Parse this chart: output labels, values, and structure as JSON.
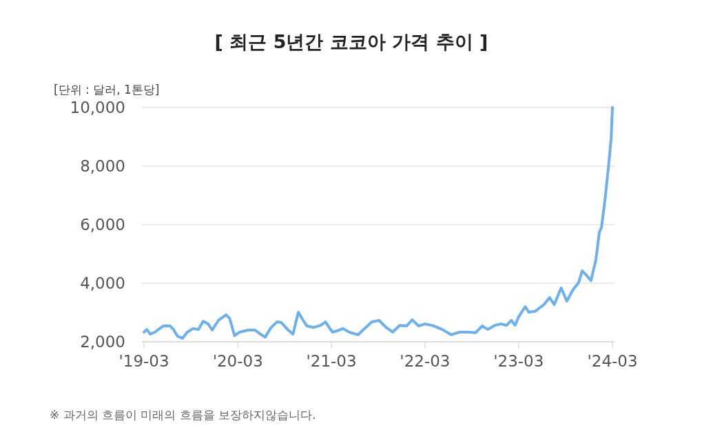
{
  "chart_data": {
    "type": "line",
    "title": "[ 최근 5년간 코코아 가격 추이 ]",
    "ylabel": "[단위 : 달러, 1톤당]",
    "annotations": [
      "※ 과거의 흐름이 미래의 흐름을 보장하지않습니다."
    ],
    "x": [
      "2019-03-01",
      "2019-03-12",
      "2019-03-25",
      "2019-04-13",
      "2019-04-26",
      "2019-05-15",
      "2019-06-11",
      "2019-06-24",
      "2019-07-10",
      "2019-07-29",
      "2019-08-17",
      "2019-09-08",
      "2019-09-29",
      "2019-10-18",
      "2019-11-06",
      "2019-11-22",
      "2019-12-16",
      "2020-01-15",
      "2020-01-29",
      "2020-02-17",
      "2020-03-08",
      "2020-04-10",
      "2020-05-07",
      "2020-05-28",
      "2020-06-16",
      "2020-07-07",
      "2020-08-01",
      "2020-08-17",
      "2020-09-11",
      "2020-10-02",
      "2020-10-23",
      "2020-11-06",
      "2020-11-25",
      "2020-12-22",
      "2021-01-18",
      "2021-02-06",
      "2021-02-23",
      "2021-03-06",
      "2021-03-25",
      "2021-04-15",
      "2021-05-09",
      "2021-06-13",
      "2021-07-02",
      "2021-08-06",
      "2021-09-03",
      "2021-09-30",
      "2021-10-26",
      "2021-11-22",
      "2021-12-19",
      "2022-01-10",
      "2022-02-04",
      "2022-03-01",
      "2022-04-05",
      "2022-05-07",
      "2022-06-11",
      "2022-07-13",
      "2022-08-17",
      "2022-09-14",
      "2022-10-10",
      "2022-11-01",
      "2022-11-28",
      "2022-12-22",
      "2023-01-13",
      "2023-02-01",
      "2023-02-15",
      "2023-03-01",
      "2023-03-27",
      "2023-04-10",
      "2023-05-04",
      "2023-06-08",
      "2023-06-30",
      "2023-07-18",
      "2023-08-14",
      "2023-09-05",
      "2023-09-30",
      "2023-10-21",
      "2023-11-04",
      "2023-11-22",
      "2023-12-08",
      "2023-12-27",
      "2024-01-10",
      "2024-01-18",
      "2024-02-01",
      "2024-02-15",
      "2024-02-25",
      "2024-03-01"
    ],
    "series": [
      {
        "color": "#6cb0ee",
        "values": [
          2330,
          2420,
          2260,
          2330,
          2420,
          2540,
          2540,
          2420,
          2190,
          2120,
          2330,
          2450,
          2420,
          2700,
          2610,
          2400,
          2730,
          2920,
          2800,
          2210,
          2330,
          2400,
          2400,
          2260,
          2160,
          2470,
          2680,
          2660,
          2420,
          2260,
          3010,
          2800,
          2540,
          2490,
          2560,
          2680,
          2450,
          2330,
          2380,
          2450,
          2330,
          2240,
          2400,
          2680,
          2730,
          2490,
          2330,
          2560,
          2540,
          2750,
          2540,
          2610,
          2540,
          2420,
          2240,
          2330,
          2330,
          2310,
          2540,
          2420,
          2560,
          2610,
          2560,
          2730,
          2560,
          2850,
          3200,
          3010,
          3040,
          3270,
          3510,
          3270,
          3840,
          3390,
          3790,
          4020,
          4420,
          4260,
          4090,
          4780,
          5740,
          5900,
          6850,
          8020,
          8960,
          10000
        ]
      }
    ],
    "xlim": [
      "2019-03-01",
      "2024-03-01"
    ],
    "xticks": [
      {
        "value": "2019-03",
        "label": "'19-03"
      },
      {
        "value": "2020-03",
        "label": "'20-03"
      },
      {
        "value": "2021-03",
        "label": "'21-03"
      },
      {
        "value": "2022-03",
        "label": "'22-03"
      },
      {
        "value": "2023-03",
        "label": "'23-03"
      },
      {
        "value": "2024-03",
        "label": "'24-03"
      }
    ],
    "ylim": [
      2000,
      10000
    ],
    "yticks": [
      {
        "value": 2000,
        "label": "2,000"
      },
      {
        "value": 4000,
        "label": "4,000"
      },
      {
        "value": 6000,
        "label": "6,000"
      },
      {
        "value": 8000,
        "label": "8,000"
      },
      {
        "value": 10000,
        "label": "10,000"
      }
    ],
    "grid": "y",
    "marker": "none",
    "line_style": "solid"
  }
}
